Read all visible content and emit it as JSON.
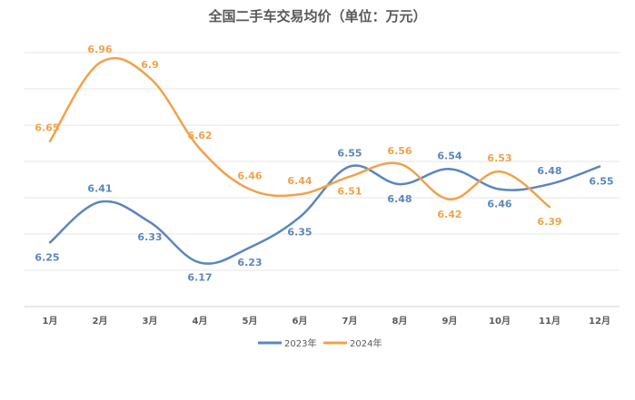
{
  "chart_data": {
    "type": "line",
    "title": "全国二手车交易均价（单位：万元）",
    "categories": [
      "1月",
      "2月",
      "3月",
      "4月",
      "5月",
      "6月",
      "7月",
      "8月",
      "9月",
      "10月",
      "11月",
      "12月"
    ],
    "series": [
      {
        "name": "2023年",
        "color": "#5b86bd",
        "values": [
          6.25,
          6.41,
          6.33,
          6.17,
          6.23,
          6.35,
          6.55,
          6.48,
          6.54,
          6.46,
          6.48,
          6.55
        ]
      },
      {
        "name": "2024年",
        "color": "#f0a24a",
        "values": [
          6.65,
          6.96,
          6.9,
          6.62,
          6.46,
          6.44,
          6.51,
          6.56,
          6.42,
          6.53,
          6.39,
          null
        ]
      }
    ],
    "label_position": {
      "2023年": [
        "below",
        "above",
        "below",
        "below",
        "below",
        "below",
        "above",
        "below",
        "above",
        "below",
        "above",
        "below"
      ],
      "2024年": [
        "above",
        "above",
        "above",
        "above",
        "above",
        "above",
        "below",
        "above",
        "below",
        "above",
        "below",
        null
      ]
    },
    "xlabel": "",
    "ylabel": "",
    "grid": true,
    "legend": "bottom"
  }
}
